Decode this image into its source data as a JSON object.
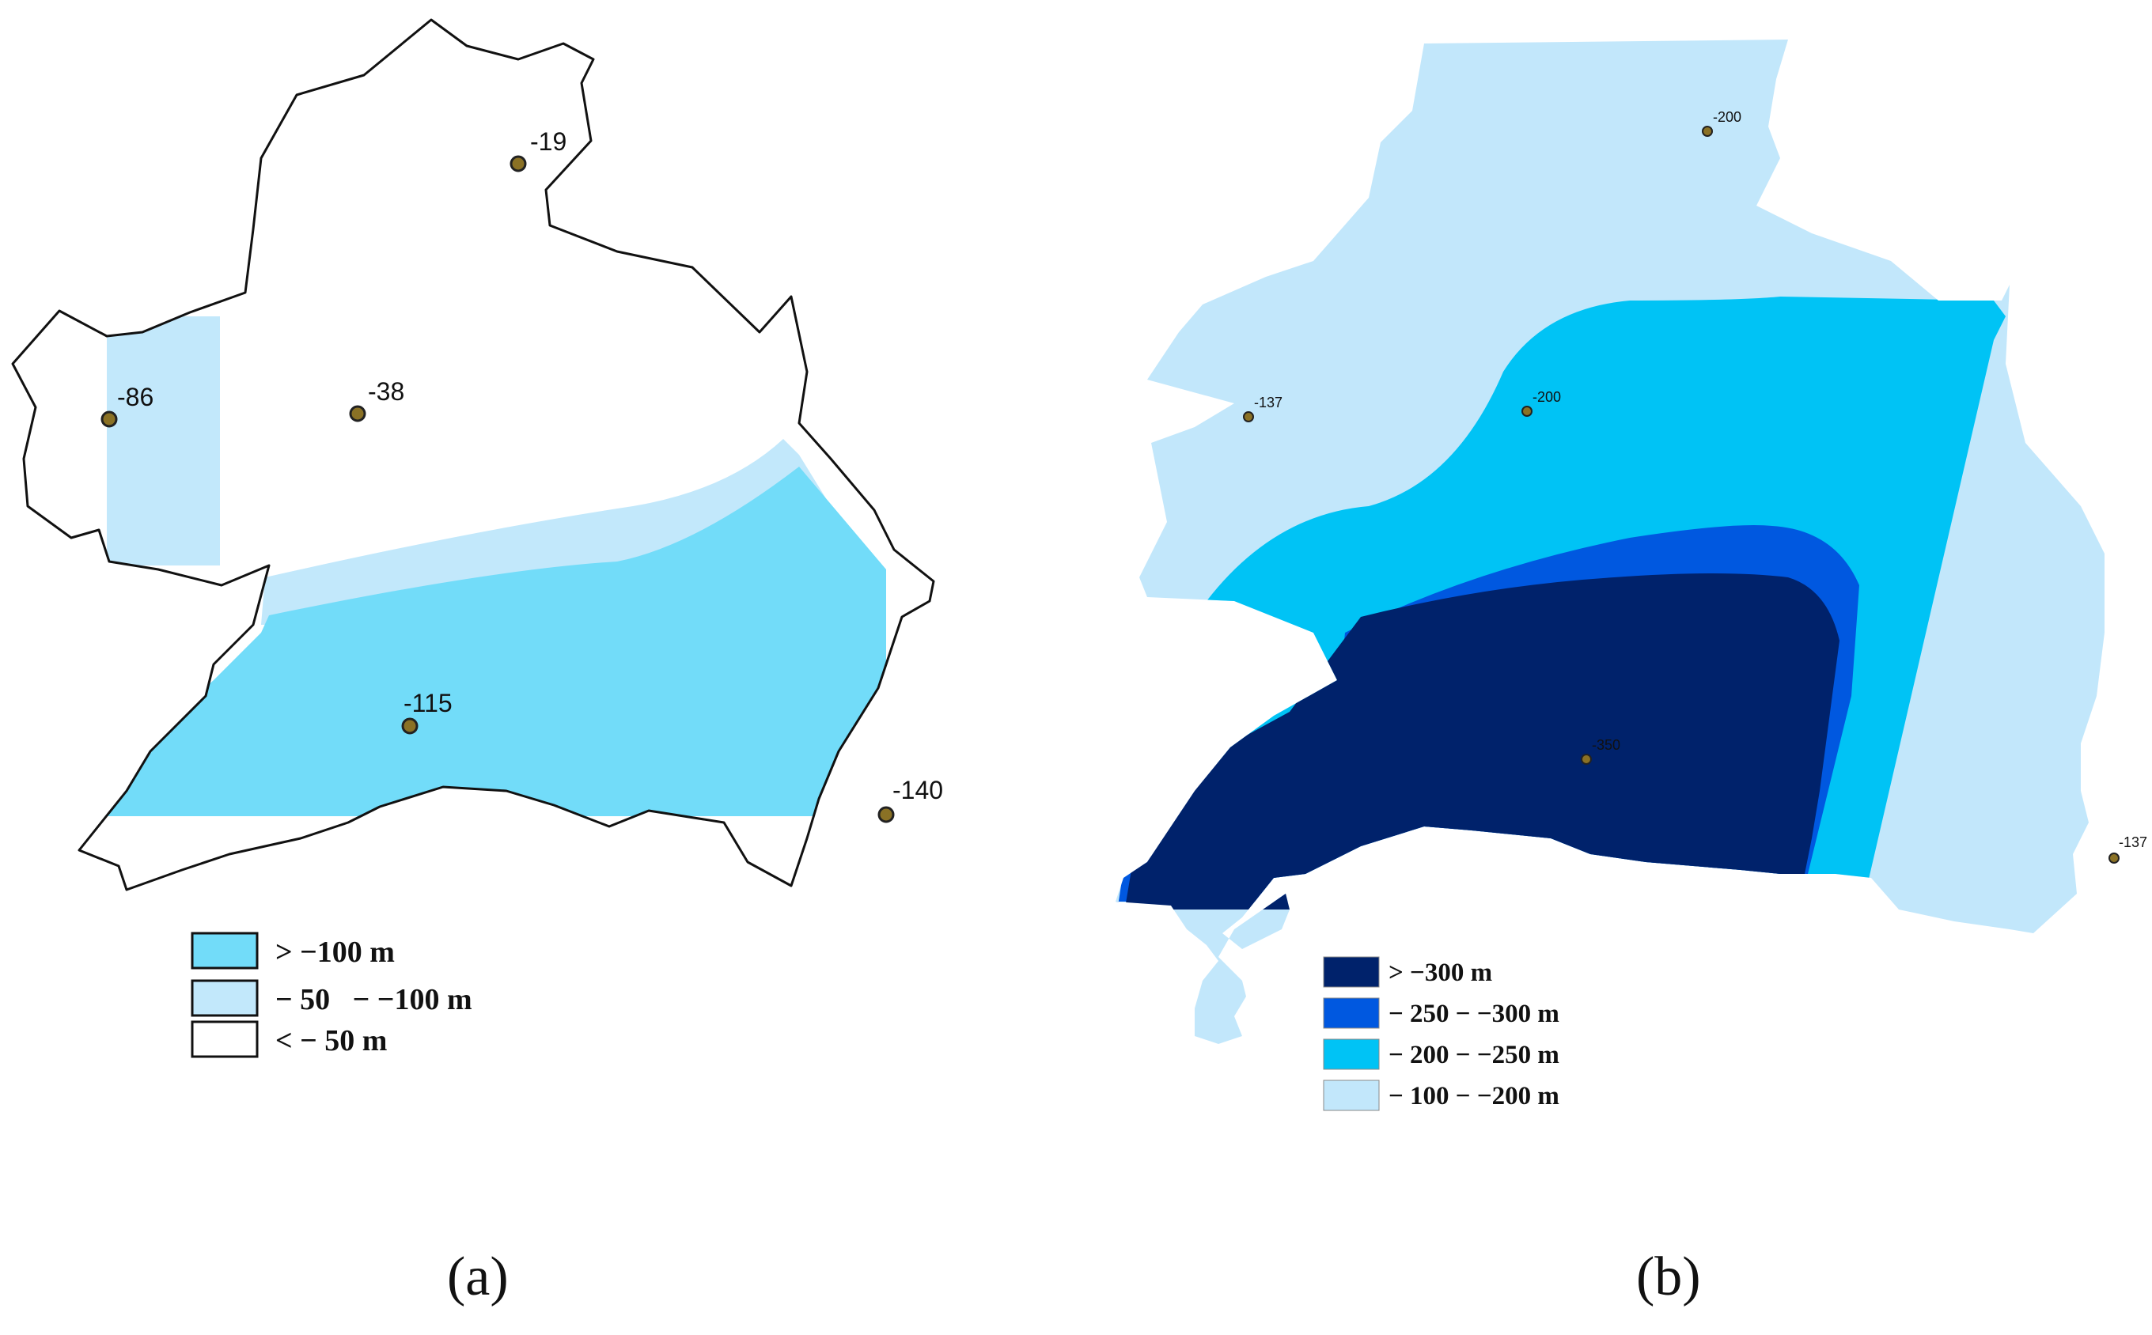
{
  "panels": [
    {
      "caption": "(a)",
      "colors": {
        "high": "#72dcf9",
        "mid": "#c2e8fb",
        "low": "#ffffff",
        "outline": "#111111",
        "point": "#8a7125"
      },
      "points": [
        "-19",
        "-38",
        "-86",
        "-115",
        "-140"
      ],
      "legend": [
        {
          "label": "> −100 m",
          "color": "#72dcf9"
        },
        {
          "label": "− 50   − −100 m",
          "color": "#c2e8fb"
        },
        {
          "label": "< − 50 m",
          "color": "#ffffff"
        }
      ]
    },
    {
      "caption": "(b)",
      "colors": {
        "c1": "#00226b",
        "c2": "#0058e0",
        "c3": "#00c3f5",
        "c4": "#c2e7fb",
        "point": "#8a7125"
      },
      "points": [
        "-200",
        "-137",
        "-200",
        "-350",
        "-137"
      ],
      "legend": [
        {
          "label": "> −300 m",
          "color": "#00226b"
        },
        {
          "label": "− 250 − −300 m",
          "color": "#0058e0"
        },
        {
          "label": "− 200 − −250 m",
          "color": "#00c3f5"
        },
        {
          "label": "− 100 − −200 m",
          "color": "#c2e7fb"
        }
      ]
    }
  ]
}
